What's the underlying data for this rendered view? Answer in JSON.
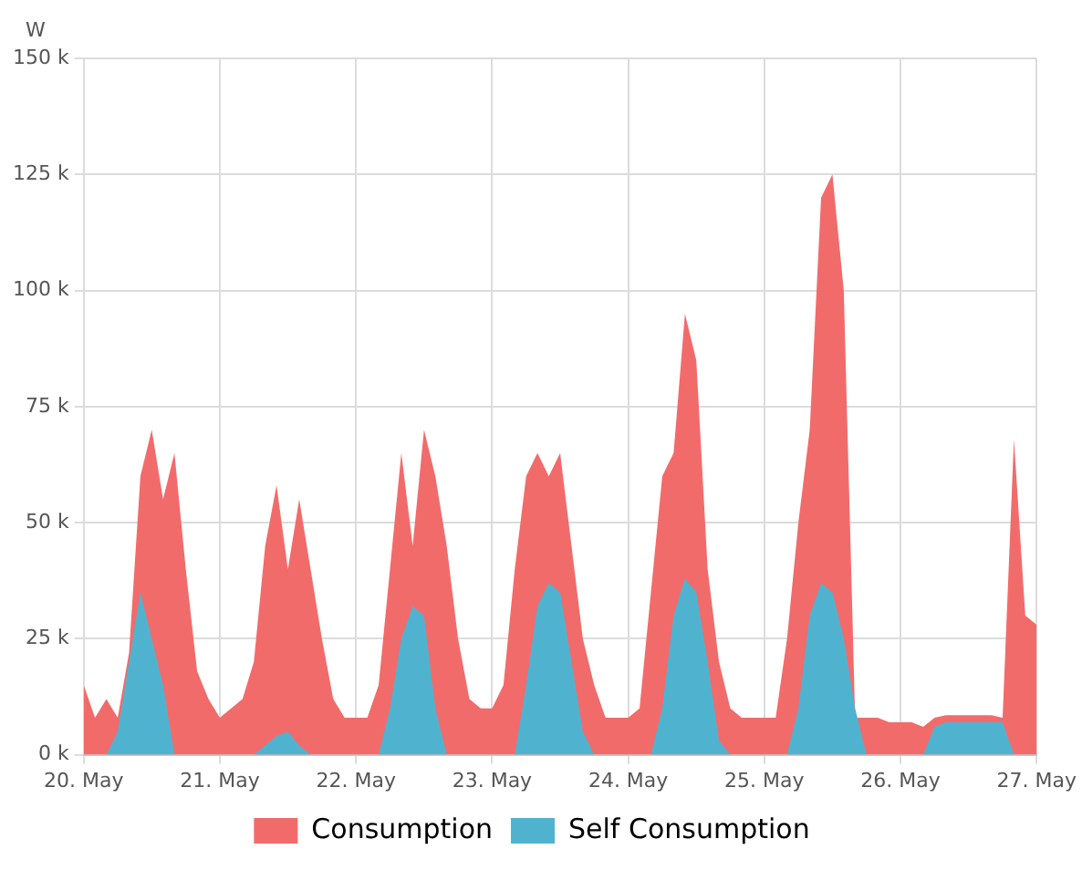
{
  "chart_data": {
    "type": "area",
    "ylabel": "W",
    "x": [
      "--05-20T00:00",
      "--05-20T02:00",
      "--05-20T04:00",
      "--05-20T06:00",
      "--05-20T08:00",
      "--05-20T10:00",
      "--05-20T12:00",
      "--05-20T14:00",
      "--05-20T16:00",
      "--05-20T18:00",
      "--05-20T20:00",
      "--05-20T22:00",
      "--05-21T00:00",
      "--05-21T02:00",
      "--05-21T04:00",
      "--05-21T06:00",
      "--05-21T08:00",
      "--05-21T10:00",
      "--05-21T12:00",
      "--05-21T14:00",
      "--05-21T16:00",
      "--05-21T18:00",
      "--05-21T20:00",
      "--05-21T22:00",
      "--05-22T00:00",
      "--05-22T02:00",
      "--05-22T04:00",
      "--05-22T06:00",
      "--05-22T08:00",
      "--05-22T10:00",
      "--05-22T12:00",
      "--05-22T14:00",
      "--05-22T16:00",
      "--05-22T18:00",
      "--05-22T20:00",
      "--05-22T22:00",
      "--05-23T00:00",
      "--05-23T02:00",
      "--05-23T04:00",
      "--05-23T06:00",
      "--05-23T08:00",
      "--05-23T10:00",
      "--05-23T12:00",
      "--05-23T14:00",
      "--05-23T16:00",
      "--05-23T18:00",
      "--05-23T20:00",
      "--05-23T22:00",
      "--05-24T00:00",
      "--05-24T02:00",
      "--05-24T04:00",
      "--05-24T06:00",
      "--05-24T08:00",
      "--05-24T10:00",
      "--05-24T12:00",
      "--05-24T14:00",
      "--05-24T16:00",
      "--05-24T18:00",
      "--05-24T20:00",
      "--05-24T22:00",
      "--05-25T00:00",
      "--05-25T02:00",
      "--05-25T04:00",
      "--05-25T06:00",
      "--05-25T08:00",
      "--05-25T10:00",
      "--05-25T12:00",
      "--05-25T14:00",
      "--05-25T16:00",
      "--05-25T18:00",
      "--05-25T20:00",
      "--05-25T22:00",
      "--05-26T00:00",
      "--05-26T02:00",
      "--05-26T04:00",
      "--05-26T06:00",
      "--05-26T08:00",
      "--05-26T10:00",
      "--05-26T12:00",
      "--05-26T14:00",
      "--05-26T16:00",
      "--05-26T18:00",
      "--05-26T20:00",
      "--05-26T22:00",
      "--05-27T00:00"
    ],
    "series": [
      {
        "name": "Consumption",
        "color": "#f26b6b",
        "values": [
          15000,
          8000,
          12000,
          8000,
          22000,
          60000,
          70000,
          55000,
          65000,
          40000,
          18000,
          12000,
          8000,
          10000,
          12000,
          20000,
          45000,
          58000,
          40000,
          55000,
          40000,
          25000,
          12000,
          8000,
          8000,
          8000,
          15000,
          40000,
          65000,
          45000,
          70000,
          60000,
          45000,
          25000,
          12000,
          10000,
          10000,
          15000,
          40000,
          60000,
          65000,
          60000,
          65000,
          45000,
          25000,
          15000,
          8000,
          8000,
          8000,
          10000,
          35000,
          60000,
          65000,
          95000,
          85000,
          40000,
          20000,
          10000,
          8000,
          8000,
          8000,
          8000,
          25000,
          50000,
          70000,
          120000,
          125000,
          100000,
          8000,
          8000,
          8000,
          7000,
          7000,
          7000,
          6000,
          8000,
          8500,
          8500,
          8500,
          8500,
          8500,
          8000,
          68000,
          30000,
          28000
        ]
      },
      {
        "name": "Self Consumption",
        "color": "#4fb3d0",
        "values": [
          0,
          0,
          0,
          5000,
          20000,
          35000,
          25000,
          15000,
          0,
          0,
          0,
          0,
          0,
          0,
          0,
          0,
          2000,
          4000,
          5000,
          2000,
          0,
          0,
          0,
          0,
          0,
          0,
          0,
          10000,
          25000,
          32000,
          30000,
          10000,
          0,
          0,
          0,
          0,
          0,
          0,
          0,
          15000,
          32000,
          37000,
          35000,
          20000,
          5000,
          0,
          0,
          0,
          0,
          0,
          0,
          10000,
          30000,
          38000,
          35000,
          20000,
          3000,
          0,
          0,
          0,
          0,
          0,
          0,
          10000,
          30000,
          37000,
          35000,
          25000,
          10000,
          0,
          0,
          0,
          0,
          0,
          0,
          6000,
          7000,
          7000,
          7000,
          7000,
          7000,
          7000,
          0,
          0,
          0
        ]
      }
    ],
    "xlim": [
      "--05-20",
      "--05-27"
    ],
    "xticks": [
      {
        "value": "--05-20",
        "label": "20. May"
      },
      {
        "value": "--05-21",
        "label": "21. May"
      },
      {
        "value": "--05-22",
        "label": "22. May"
      },
      {
        "value": "--05-23",
        "label": "23. May"
      },
      {
        "value": "--05-24",
        "label": "24. May"
      },
      {
        "value": "--05-25",
        "label": "25. May"
      },
      {
        "value": "--05-26",
        "label": "26. May"
      },
      {
        "value": "--05-27",
        "label": "27. May"
      }
    ],
    "ylim": [
      0,
      150000
    ],
    "yticks": [
      {
        "value": 0,
        "label": "0 k"
      },
      {
        "value": 25000,
        "label": "25 k"
      },
      {
        "value": 50000,
        "label": "50 k"
      },
      {
        "value": 75000,
        "label": "75 k"
      },
      {
        "value": 100000,
        "label": "100 k"
      },
      {
        "value": 125000,
        "label": "125 k"
      },
      {
        "value": 150000,
        "label": "150 k"
      }
    ],
    "grid": true,
    "legend": "bottom"
  }
}
